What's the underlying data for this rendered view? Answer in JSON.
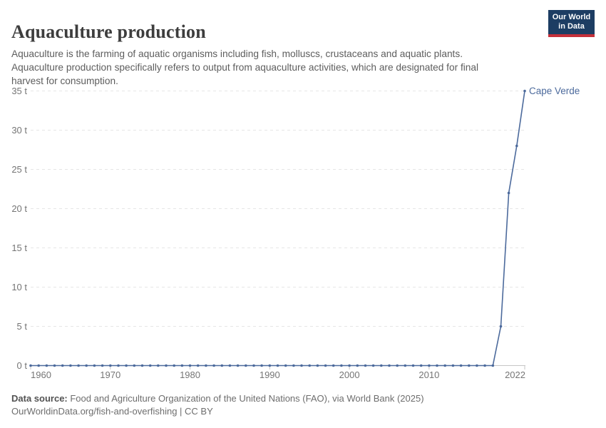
{
  "header": {
    "title": "Aquaculture production",
    "subtitle": "Aquaculture is the farming of aquatic organisms including fish, molluscs, crustaceans and aquatic plants.\nAquaculture production specifically refers to output from aquaculture activities, which are designated for final\nharvest for consumption.",
    "logo_text": "Our World\nin Data",
    "logo_colors": {
      "background": "#1d3d63",
      "bar": "#c5303a",
      "text": "#ffffff"
    }
  },
  "chart_data": {
    "type": "line",
    "title": "Aquaculture production",
    "entity_label": "Cape Verde",
    "unit": "t",
    "xlabel": "",
    "ylabel": "",
    "xlim": [
      1960,
      2022
    ],
    "ylim": [
      0,
      35
    ],
    "grid": "horizontal-dashed",
    "legend_position": "end-of-line-label",
    "x": [
      1960,
      1961,
      1962,
      1963,
      1964,
      1965,
      1966,
      1967,
      1968,
      1969,
      1970,
      1971,
      1972,
      1973,
      1974,
      1975,
      1976,
      1977,
      1978,
      1979,
      1980,
      1981,
      1982,
      1983,
      1984,
      1985,
      1986,
      1987,
      1988,
      1989,
      1990,
      1991,
      1992,
      1993,
      1994,
      1995,
      1996,
      1997,
      1998,
      1999,
      2000,
      2001,
      2002,
      2003,
      2004,
      2005,
      2006,
      2007,
      2008,
      2009,
      2010,
      2011,
      2012,
      2013,
      2014,
      2015,
      2016,
      2017,
      2018,
      2019,
      2020,
      2021,
      2022
    ],
    "series": [
      {
        "name": "Cape Verde",
        "values": [
          0,
          0,
          0,
          0,
          0,
          0,
          0,
          0,
          0,
          0,
          0,
          0,
          0,
          0,
          0,
          0,
          0,
          0,
          0,
          0,
          0,
          0,
          0,
          0,
          0,
          0,
          0,
          0,
          0,
          0,
          0,
          0,
          0,
          0,
          0,
          0,
          0,
          0,
          0,
          0,
          0,
          0,
          0,
          0,
          0,
          0,
          0,
          0,
          0,
          0,
          0,
          0,
          0,
          0,
          0,
          0,
          0,
          0,
          0,
          5,
          22,
          28,
          35
        ]
      }
    ],
    "yticks": [
      {
        "value": 0,
        "label": "0 t"
      },
      {
        "value": 5,
        "label": "5 t"
      },
      {
        "value": 10,
        "label": "10 t"
      },
      {
        "value": 15,
        "label": "15 t"
      },
      {
        "value": 20,
        "label": "20 t"
      },
      {
        "value": 25,
        "label": "25 t"
      },
      {
        "value": 30,
        "label": "30 t"
      },
      {
        "value": 35,
        "label": "35 t"
      }
    ],
    "xticks": [
      {
        "value": 1960,
        "label": "1960",
        "anchor": "start"
      },
      {
        "value": 1970,
        "label": "1970",
        "anchor": "middle"
      },
      {
        "value": 1980,
        "label": "1980",
        "anchor": "middle"
      },
      {
        "value": 1990,
        "label": "1990",
        "anchor": "middle"
      },
      {
        "value": 2000,
        "label": "2000",
        "anchor": "middle"
      },
      {
        "value": 2010,
        "label": "2010",
        "anchor": "middle"
      },
      {
        "value": 2022,
        "label": "2022",
        "anchor": "end"
      }
    ],
    "colors": {
      "line": "#4c6a9c",
      "marker": "#4c6a9c",
      "entity_label": "#4c6a9c",
      "grid": "#e6e6e6",
      "axis": "#c6c6c6",
      "tick_text": "#757575"
    }
  },
  "footer": {
    "source_label": "Data source:",
    "source_text": " Food and Agriculture Organization of the United Nations (FAO), via World Bank (2025)",
    "url_line": "OurWorldinData.org/fish-and-overfishing | CC BY"
  }
}
